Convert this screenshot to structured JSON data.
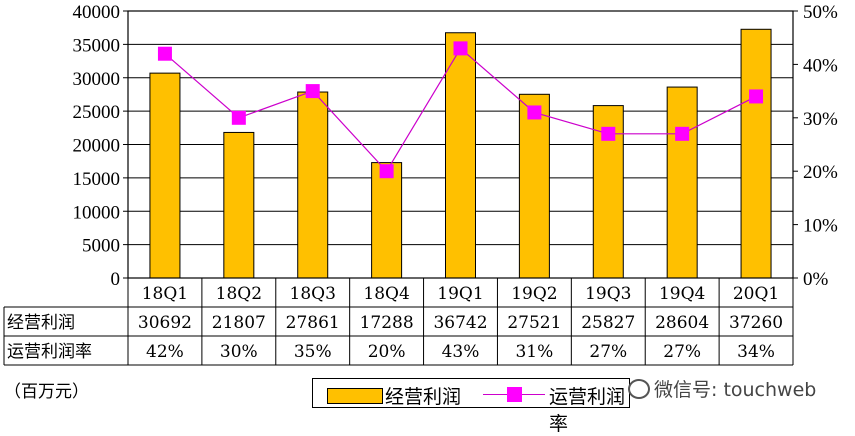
{
  "chart_data": {
    "type": "bar+line",
    "categories": [
      "18Q1",
      "18Q2",
      "18Q3",
      "18Q4",
      "19Q1",
      "19Q2",
      "19Q3",
      "19Q4",
      "20Q1"
    ],
    "series": [
      {
        "name": "经营利润",
        "type": "bar",
        "axis": "left",
        "values": [
          30692,
          21807,
          27861,
          17288,
          36742,
          27521,
          25827,
          28604,
          37260
        ],
        "color": "#FFC000"
      },
      {
        "name": "运营利润率",
        "type": "line",
        "axis": "right",
        "values": [
          42,
          30,
          35,
          20,
          43,
          31,
          27,
          27,
          34
        ],
        "color": "#FF00FF"
      }
    ],
    "table_rows": [
      {
        "label": "经营利润",
        "values": [
          "30692",
          "21807",
          "27861",
          "17288",
          "36742",
          "27521",
          "25827",
          "28604",
          "37260"
        ]
      },
      {
        "label": "运营利润率",
        "values": [
          "42%",
          "30%",
          "35%",
          "20%",
          "43%",
          "31%",
          "27%",
          "27%",
          "34%"
        ]
      }
    ],
    "y_left": {
      "min": 0,
      "max": 40000,
      "ticks": [
        "0",
        "5000",
        "10000",
        "15000",
        "20000",
        "25000",
        "30000",
        "35000",
        "40000"
      ]
    },
    "y_right": {
      "min": 0,
      "max": 50,
      "ticks": [
        "0%",
        "10%",
        "20%",
        "30%",
        "40%",
        "50%"
      ]
    },
    "grid": true,
    "unit_note": "（百万元）",
    "legend": {
      "placement": "bottom",
      "bar_label": "经营利润",
      "line_label": "运营利润率"
    }
  },
  "watermark": "微信号: touchweb"
}
